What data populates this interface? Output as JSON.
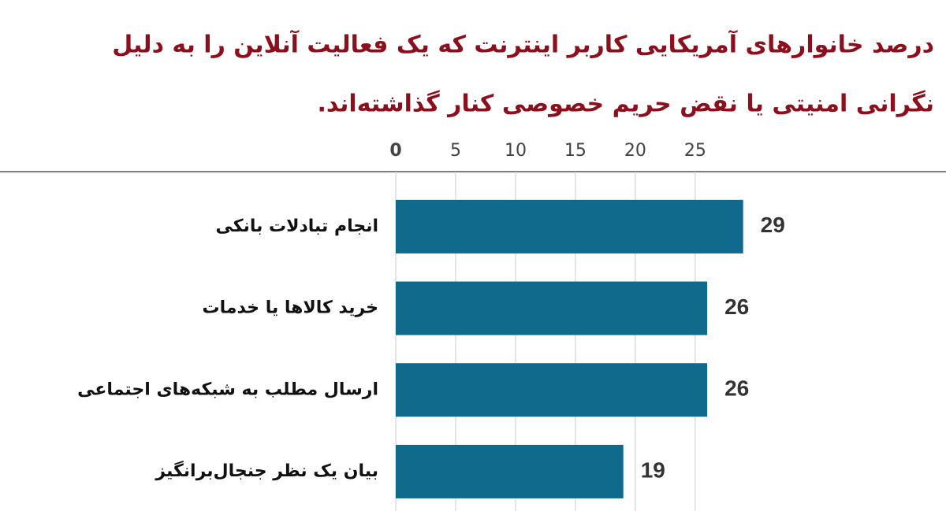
{
  "chart_data": {
    "type": "bar",
    "orientation": "horizontal",
    "title": [
      "درصد خانوارهای آمریکایی کاربر اینترنت که یک فعالیت آنلاین را به دلیل",
      "نگرانی امنیتی یا نقض حریم خصوصی کنار گذاشته‌اند."
    ],
    "categories": [
      "انجام تبادلات بانکی",
      "خرید کالاها یا خدمات",
      "ارسال مطلب به شبکه‌های اجتماعی",
      "بیان یک نظر جنجال‌برانگیز"
    ],
    "values": [
      29,
      26,
      26,
      19
    ],
    "color": "#0f6a8b",
    "xlim": [
      0,
      46
    ],
    "xticks": [
      0,
      5,
      10,
      15,
      20,
      25
    ],
    "grid": true
  }
}
